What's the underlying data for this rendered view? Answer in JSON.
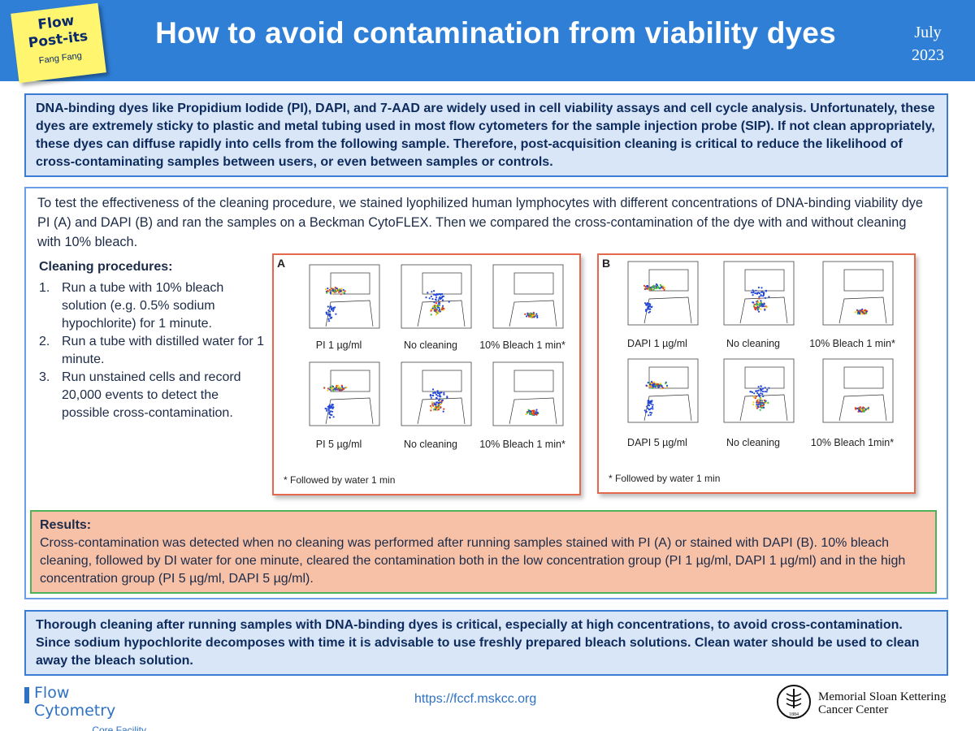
{
  "header": {
    "postit_line1": "Flow",
    "postit_line2": "Post-its",
    "postit_author": "Fang Fang",
    "title": "How to avoid contamination from viability dyes",
    "date_month": "July",
    "date_year": "2023"
  },
  "intro": "DNA-binding dyes like Propidium Iodide (PI), DAPI, and 7-AAD are widely used in cell viability assays and cell cycle analysis. Unfortunately, these dyes are extremely sticky to plastic and metal tubing used in most flow cytometers for the sample injection probe (SIP). If not clean appropriately, these dyes can diffuse rapidly into cells from the following sample. Therefore, post-acquisition cleaning is critical to reduce the likelihood of cross-contaminating samples between users, or even between samples or controls.",
  "method": "To test the effectiveness of the cleaning procedure, we stained lyophilized human lymphocytes with different concentrations of DNA-binding viability dye PI (A) and DAPI (B) and ran the samples on a Beckman CytoFLEX. Then we compared the cross-contamination of the dye with and without cleaning with 10% bleach.",
  "procedures": {
    "title": "Cleaning procedures:",
    "items": [
      {
        "num": "1.",
        "text": "Run a tube with 10% bleach solution (e.g. 0.5% sodium hypochlorite) for 1 minute."
      },
      {
        "num": "2.",
        "text": "Run a tube with distilled water for 1 minute."
      },
      {
        "num": "3.",
        "text": "Run unstained cells and record 20,000 events to detect the possible cross-contamination."
      }
    ]
  },
  "panel_a": {
    "letter": "A",
    "labels": [
      "PI 1 µg/ml",
      "No cleaning",
      "10% Bleach 1 min*",
      "PI 5 µg/ml",
      "No cleaning",
      "10% Bleach 1 min*"
    ],
    "footnote": "* Followed by water 1 min"
  },
  "panel_b": {
    "letter": "B",
    "labels": [
      "DAPI 1 µg/ml",
      "No cleaning",
      "10% Bleach 1 min*",
      "DAPI 5 µg/ml",
      "No cleaning",
      "10% Bleach 1min*"
    ],
    "footnote": "* Followed by water 1 min"
  },
  "results": {
    "title": "Results:",
    "text": "Cross-contamination was detected when no cleaning was performed after running samples stained with PI (A) or stained with DAPI (B). 10% bleach cleaning, followed by DI water for one minute, cleared the contamination both in the low concentration group (PI 1 µg/ml, DAPI 1 µg/ml) and in the high concentration group (PI 5 µg/ml, DAPI 5 µg/ml)."
  },
  "conclusion": "Thorough cleaning after running samples with DNA-binding dyes is critical, especially at high concentrations, to avoid cross-contamination. Since sodium hypochlorite decomposes with time it is advisable to use freshly prepared bleach solutions. Clean water should be used to clean away the bleach solution.",
  "footer": {
    "fcf_name": "Flow Cytometry",
    "fcf_sub": "Core Facility",
    "url": "https://fccf.mskcc.org",
    "mskcc_line1": "Memorial Sloan Kettering",
    "mskcc_line2": "Cancer Center",
    "mskcc_year": "1884"
  },
  "colors": {
    "header_bg": "#2f7fd7",
    "info_box_bg": "#d9e6f8",
    "results_bg": "#f7c1a8",
    "panel_border": "#e4694c",
    "results_border": "#4fb15a"
  }
}
